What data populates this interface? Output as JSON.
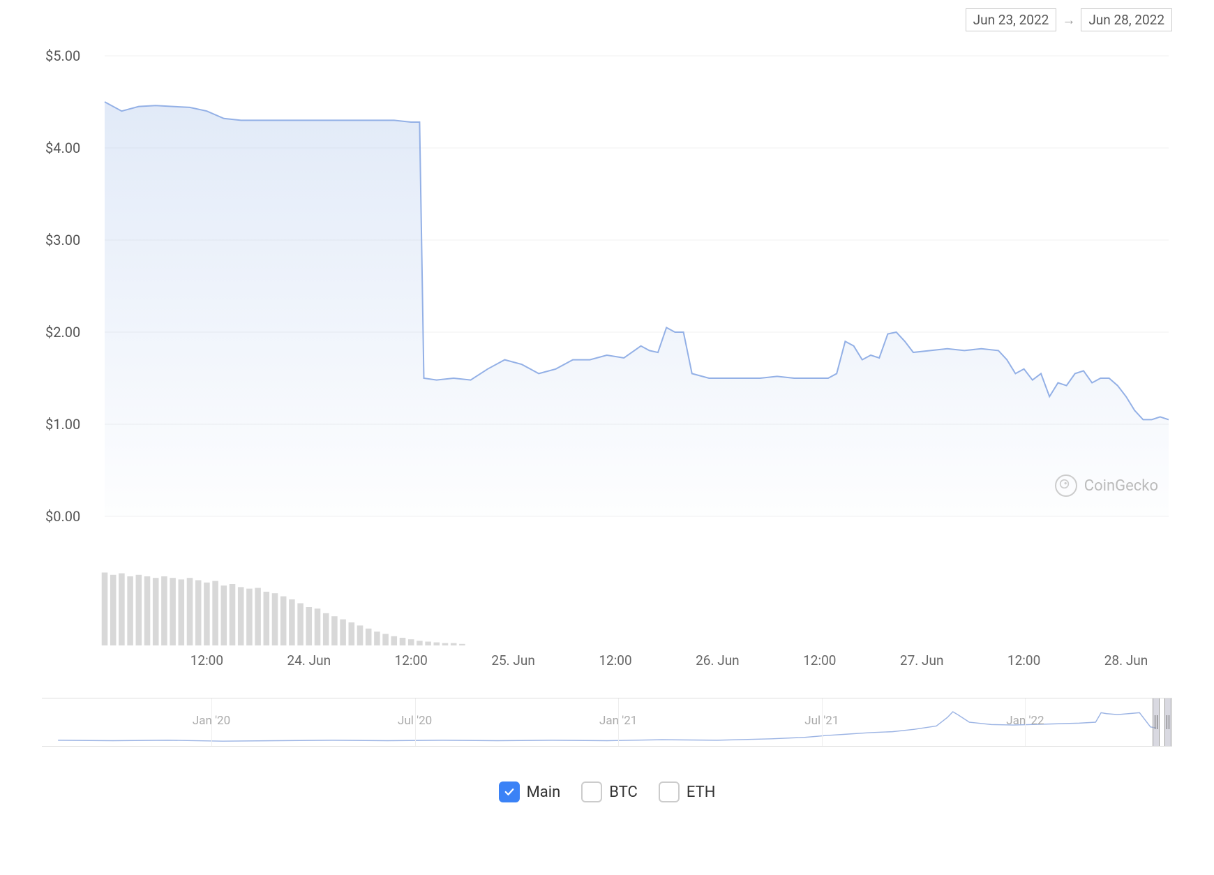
{
  "date_range": {
    "from": "Jun 23, 2022",
    "to": "Jun 28, 2022",
    "arrow": "→"
  },
  "main_chart": {
    "type": "area",
    "line_color": "#93b0e6",
    "line_width": 2,
    "fill_top_color": "rgba(170,195,235,0.35)",
    "fill_bottom_color": "rgba(170,195,235,0.02)",
    "background_color": "#ffffff",
    "grid_color": "#f0f0f0",
    "ylim": [
      0,
      5
    ],
    "ylabels": [
      "$0.00",
      "$1.00",
      "$2.00",
      "$3.00",
      "$4.00",
      "$5.00"
    ],
    "yvalues": [
      0,
      1,
      2,
      3,
      4,
      5
    ],
    "label_fontsize": 20,
    "label_color": "#555555",
    "x_range": [
      0,
      125
    ],
    "x_ticks": [
      {
        "pos": 12,
        "label": "12:00"
      },
      {
        "pos": 24,
        "label": "24. Jun"
      },
      {
        "pos": 36,
        "label": "12:00"
      },
      {
        "pos": 48,
        "label": "25. Jun"
      },
      {
        "pos": 60,
        "label": "12:00"
      },
      {
        "pos": 72,
        "label": "26. Jun"
      },
      {
        "pos": 84,
        "label": "12:00"
      },
      {
        "pos": 96,
        "label": "27. Jun"
      },
      {
        "pos": 108,
        "label": "12:00"
      },
      {
        "pos": 120,
        "label": "28. Jun"
      }
    ],
    "series": [
      {
        "x": 0,
        "y": 4.5
      },
      {
        "x": 2,
        "y": 4.4
      },
      {
        "x": 4,
        "y": 4.45
      },
      {
        "x": 6,
        "y": 4.46
      },
      {
        "x": 8,
        "y": 4.45
      },
      {
        "x": 10,
        "y": 4.44
      },
      {
        "x": 12,
        "y": 4.4
      },
      {
        "x": 14,
        "y": 4.32
      },
      {
        "x": 16,
        "y": 4.3
      },
      {
        "x": 18,
        "y": 4.3
      },
      {
        "x": 20,
        "y": 4.3
      },
      {
        "x": 22,
        "y": 4.3
      },
      {
        "x": 24,
        "y": 4.3
      },
      {
        "x": 26,
        "y": 4.3
      },
      {
        "x": 28,
        "y": 4.3
      },
      {
        "x": 30,
        "y": 4.3
      },
      {
        "x": 32,
        "y": 4.3
      },
      {
        "x": 34,
        "y": 4.3
      },
      {
        "x": 36,
        "y": 4.28
      },
      {
        "x": 37,
        "y": 4.28
      },
      {
        "x": 37.5,
        "y": 1.5
      },
      {
        "x": 39,
        "y": 1.48
      },
      {
        "x": 41,
        "y": 1.5
      },
      {
        "x": 43,
        "y": 1.48
      },
      {
        "x": 45,
        "y": 1.6
      },
      {
        "x": 47,
        "y": 1.7
      },
      {
        "x": 49,
        "y": 1.65
      },
      {
        "x": 51,
        "y": 1.55
      },
      {
        "x": 53,
        "y": 1.6
      },
      {
        "x": 55,
        "y": 1.7
      },
      {
        "x": 57,
        "y": 1.7
      },
      {
        "x": 59,
        "y": 1.75
      },
      {
        "x": 61,
        "y": 1.72
      },
      {
        "x": 63,
        "y": 1.85
      },
      {
        "x": 64,
        "y": 1.8
      },
      {
        "x": 65,
        "y": 1.78
      },
      {
        "x": 66,
        "y": 2.05
      },
      {
        "x": 67,
        "y": 2.0
      },
      {
        "x": 68,
        "y": 2.0
      },
      {
        "x": 69,
        "y": 1.55
      },
      {
        "x": 71,
        "y": 1.5
      },
      {
        "x": 73,
        "y": 1.5
      },
      {
        "x": 75,
        "y": 1.5
      },
      {
        "x": 77,
        "y": 1.5
      },
      {
        "x": 79,
        "y": 1.52
      },
      {
        "x": 81,
        "y": 1.5
      },
      {
        "x": 83,
        "y": 1.5
      },
      {
        "x": 85,
        "y": 1.5
      },
      {
        "x": 86,
        "y": 1.55
      },
      {
        "x": 87,
        "y": 1.9
      },
      {
        "x": 88,
        "y": 1.85
      },
      {
        "x": 89,
        "y": 1.7
      },
      {
        "x": 90,
        "y": 1.75
      },
      {
        "x": 91,
        "y": 1.72
      },
      {
        "x": 92,
        "y": 1.98
      },
      {
        "x": 93,
        "y": 2.0
      },
      {
        "x": 94,
        "y": 1.9
      },
      {
        "x": 95,
        "y": 1.78
      },
      {
        "x": 97,
        "y": 1.8
      },
      {
        "x": 99,
        "y": 1.82
      },
      {
        "x": 101,
        "y": 1.8
      },
      {
        "x": 103,
        "y": 1.82
      },
      {
        "x": 105,
        "y": 1.8
      },
      {
        "x": 106,
        "y": 1.7
      },
      {
        "x": 107,
        "y": 1.55
      },
      {
        "x": 108,
        "y": 1.6
      },
      {
        "x": 109,
        "y": 1.48
      },
      {
        "x": 110,
        "y": 1.55
      },
      {
        "x": 111,
        "y": 1.3
      },
      {
        "x": 112,
        "y": 1.45
      },
      {
        "x": 113,
        "y": 1.42
      },
      {
        "x": 114,
        "y": 1.55
      },
      {
        "x": 115,
        "y": 1.58
      },
      {
        "x": 116,
        "y": 1.45
      },
      {
        "x": 117,
        "y": 1.5
      },
      {
        "x": 118,
        "y": 1.5
      },
      {
        "x": 119,
        "y": 1.42
      },
      {
        "x": 120,
        "y": 1.3
      },
      {
        "x": 121,
        "y": 1.15
      },
      {
        "x": 122,
        "y": 1.05
      },
      {
        "x": 123,
        "y": 1.05
      },
      {
        "x": 124,
        "y": 1.08
      },
      {
        "x": 125,
        "y": 1.05
      }
    ]
  },
  "volume_chart": {
    "type": "bar",
    "bar_color": "#d8d8d8",
    "bar_width": 0.7,
    "x_range": [
      0,
      125
    ],
    "y_range": [
      0,
      100
    ],
    "bars": [
      {
        "x": 0,
        "h": 95
      },
      {
        "x": 1,
        "h": 92
      },
      {
        "x": 2,
        "h": 94
      },
      {
        "x": 3,
        "h": 90
      },
      {
        "x": 4,
        "h": 92
      },
      {
        "x": 5,
        "h": 90
      },
      {
        "x": 6,
        "h": 88
      },
      {
        "x": 7,
        "h": 90
      },
      {
        "x": 8,
        "h": 88
      },
      {
        "x": 9,
        "h": 86
      },
      {
        "x": 10,
        "h": 88
      },
      {
        "x": 11,
        "h": 85
      },
      {
        "x": 12,
        "h": 82
      },
      {
        "x": 13,
        "h": 84
      },
      {
        "x": 14,
        "h": 78
      },
      {
        "x": 15,
        "h": 80
      },
      {
        "x": 16,
        "h": 76
      },
      {
        "x": 17,
        "h": 74
      },
      {
        "x": 18,
        "h": 75
      },
      {
        "x": 19,
        "h": 70
      },
      {
        "x": 20,
        "h": 68
      },
      {
        "x": 21,
        "h": 64
      },
      {
        "x": 22,
        "h": 60
      },
      {
        "x": 23,
        "h": 55
      },
      {
        "x": 24,
        "h": 50
      },
      {
        "x": 25,
        "h": 48
      },
      {
        "x": 26,
        "h": 42
      },
      {
        "x": 27,
        "h": 38
      },
      {
        "x": 28,
        "h": 34
      },
      {
        "x": 29,
        "h": 30
      },
      {
        "x": 30,
        "h": 26
      },
      {
        "x": 31,
        "h": 22
      },
      {
        "x": 32,
        "h": 18
      },
      {
        "x": 33,
        "h": 15
      },
      {
        "x": 34,
        "h": 12
      },
      {
        "x": 35,
        "h": 10
      },
      {
        "x": 36,
        "h": 8
      },
      {
        "x": 37,
        "h": 6
      },
      {
        "x": 38,
        "h": 5
      },
      {
        "x": 39,
        "h": 4
      },
      {
        "x": 40,
        "h": 3
      },
      {
        "x": 41,
        "h": 3
      },
      {
        "x": 42,
        "h": 2
      }
    ]
  },
  "navigator": {
    "type": "line",
    "line_color": "#9cb4e4",
    "line_width": 1.5,
    "grid_color": "#eeeeee",
    "x_range": [
      0,
      1000
    ],
    "y_range": [
      0,
      100
    ],
    "ticks": [
      {
        "pos": 150,
        "label": "Jan '20"
      },
      {
        "pos": 330,
        "label": "Jul '20"
      },
      {
        "pos": 510,
        "label": "Jan '21"
      },
      {
        "pos": 690,
        "label": "Jul '21"
      },
      {
        "pos": 870,
        "label": "Jan '22"
      }
    ],
    "handle_left_pos": 983,
    "handle_right_pos": 993,
    "series": [
      {
        "x": 0,
        "y": 12
      },
      {
        "x": 50,
        "y": 11
      },
      {
        "x": 100,
        "y": 12
      },
      {
        "x": 150,
        "y": 10
      },
      {
        "x": 200,
        "y": 11
      },
      {
        "x": 250,
        "y": 12
      },
      {
        "x": 300,
        "y": 11
      },
      {
        "x": 350,
        "y": 12
      },
      {
        "x": 400,
        "y": 11
      },
      {
        "x": 450,
        "y": 12
      },
      {
        "x": 500,
        "y": 11
      },
      {
        "x": 550,
        "y": 13
      },
      {
        "x": 600,
        "y": 12
      },
      {
        "x": 650,
        "y": 15
      },
      {
        "x": 680,
        "y": 18
      },
      {
        "x": 700,
        "y": 22
      },
      {
        "x": 720,
        "y": 25
      },
      {
        "x": 740,
        "y": 28
      },
      {
        "x": 760,
        "y": 30
      },
      {
        "x": 780,
        "y": 35
      },
      {
        "x": 800,
        "y": 42
      },
      {
        "x": 810,
        "y": 60
      },
      {
        "x": 815,
        "y": 72
      },
      {
        "x": 820,
        "y": 65
      },
      {
        "x": 830,
        "y": 50
      },
      {
        "x": 850,
        "y": 45
      },
      {
        "x": 870,
        "y": 44
      },
      {
        "x": 900,
        "y": 46
      },
      {
        "x": 930,
        "y": 48
      },
      {
        "x": 945,
        "y": 50
      },
      {
        "x": 950,
        "y": 70
      },
      {
        "x": 955,
        "y": 68
      },
      {
        "x": 965,
        "y": 66
      },
      {
        "x": 975,
        "y": 68
      },
      {
        "x": 985,
        "y": 70
      },
      {
        "x": 995,
        "y": 40
      },
      {
        "x": 1000,
        "y": 38
      }
    ]
  },
  "legend": {
    "items": [
      {
        "label": "Main",
        "checked": true
      },
      {
        "label": "BTC",
        "checked": false
      },
      {
        "label": "ETH",
        "checked": false
      }
    ],
    "check_color": "#3b82f6"
  },
  "watermark": {
    "text": "CoinGecko"
  }
}
